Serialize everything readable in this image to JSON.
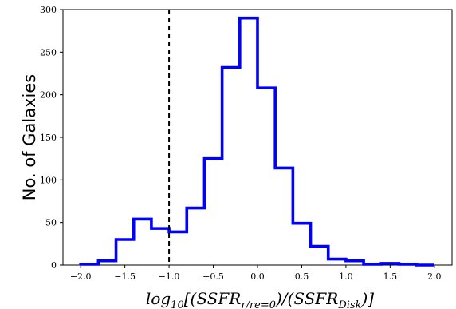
{
  "chart_data": {
    "type": "histogram",
    "title": "",
    "ylabel": "No. of Galaxies",
    "xlabel": {
      "pre": "log",
      "pre_sub": "10",
      "mid1": "[(SSFR",
      "mid1_sub": "r/re=0",
      "mid2": ")/(SSFR",
      "mid2_sub": "Disk",
      "post": ")]"
    },
    "xlim": [
      -2.2,
      2.2
    ],
    "ylim": [
      0,
      300
    ],
    "xticks": [
      -2.0,
      -1.5,
      -1.0,
      -0.5,
      0.0,
      0.5,
      1.0,
      1.5,
      2.0
    ],
    "xtick_labels": [
      "−2.0",
      "−1.5",
      "−1.0",
      "−0.5",
      "0.0",
      "0.5",
      "1.0",
      "1.5",
      "2.0"
    ],
    "yticks": [
      0,
      50,
      100,
      150,
      200,
      250,
      300
    ],
    "ytick_labels": [
      "0",
      "50",
      "100",
      "150",
      "200",
      "250",
      "300"
    ],
    "bin_edges": [
      -2.0,
      -1.8,
      -1.6,
      -1.4,
      -1.2,
      -1.0,
      -0.8,
      -0.6,
      -0.4,
      -0.2,
      0.0,
      0.2,
      0.4,
      0.6,
      0.8,
      1.0,
      1.2,
      1.4,
      1.6,
      1.8,
      2.0
    ],
    "counts": [
      1,
      5,
      30,
      54,
      43,
      39,
      67,
      125,
      232,
      290,
      208,
      114,
      49,
      22,
      7,
      5,
      1,
      2,
      1,
      0
    ],
    "series_color": "#0000ff",
    "reference_line": {
      "x": -1.0,
      "style": "dashed",
      "color": "#000000"
    },
    "grid": false
  }
}
